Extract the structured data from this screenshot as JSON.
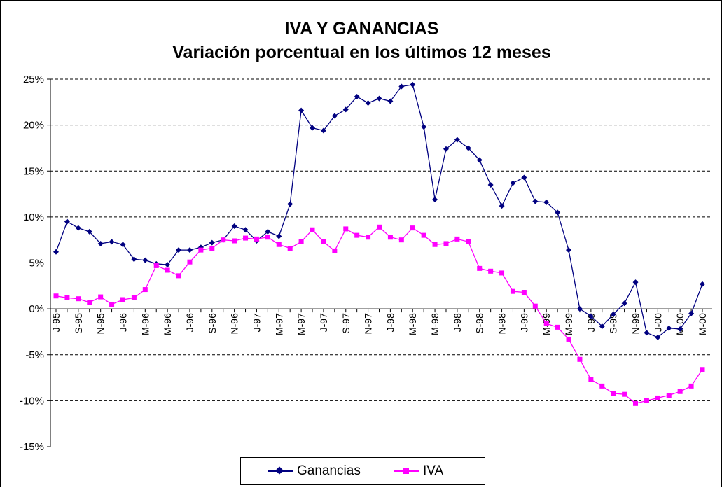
{
  "chart_data": {
    "type": "line",
    "title": "IVA Y GANANCIAS",
    "subtitle": "Variación porcentual en los últimos 12 meses",
    "ylim": [
      -15,
      25
    ],
    "yticks": [
      "-15%",
      "-10%",
      "-5%",
      "0%",
      "5%",
      "10%",
      "15%",
      "20%",
      "25%"
    ],
    "ytick_values": [
      -15,
      -10,
      -5,
      0,
      5,
      10,
      15,
      20,
      25
    ],
    "grid": "horizontal dashed",
    "legend_position": "bottom",
    "x_tick_labels": [
      "J-95",
      "S-95",
      "N-95",
      "J-96",
      "M-96",
      "M-96",
      "J-96",
      "S-96",
      "N-96",
      "J-97",
      "M-97",
      "M-97",
      "J-97",
      "S-97",
      "N-97",
      "J-98",
      "M-98",
      "M-98",
      "J-98",
      "S-98",
      "N-98",
      "J-99",
      "M-99",
      "M-99",
      "J-99",
      "S-99",
      "N-99",
      "J-00",
      "M-00",
      "M-00"
    ],
    "series": [
      {
        "name": "Ganancias",
        "color": "#000080",
        "marker": "diamond",
        "values": [
          6.2,
          9.5,
          8.8,
          8.4,
          7.1,
          7.3,
          7.0,
          5.4,
          5.3,
          4.9,
          4.8,
          6.4,
          6.4,
          6.7,
          7.2,
          7.5,
          9.0,
          8.6,
          7.4,
          8.4,
          7.9,
          11.4,
          21.6,
          19.7,
          19.4,
          21.0,
          21.7,
          23.1,
          22.4,
          22.9,
          22.6,
          24.2,
          24.4,
          19.8,
          11.9,
          17.4,
          18.4,
          17.5,
          16.2,
          13.5,
          11.2,
          13.7,
          14.3,
          11.7,
          11.6,
          10.5,
          6.4,
          0.0,
          -0.8,
          -1.9,
          -0.6,
          0.6,
          2.9,
          -2.6,
          -3.1,
          -2.1,
          -2.2,
          -0.5,
          2.7
        ]
      },
      {
        "name": "IVA",
        "color": "#ff00ff",
        "marker": "square",
        "values": [
          1.4,
          1.2,
          1.1,
          0.7,
          1.3,
          0.5,
          1.0,
          1.2,
          2.1,
          4.7,
          4.2,
          3.6,
          5.1,
          6.4,
          6.6,
          7.5,
          7.4,
          7.7,
          7.6,
          7.8,
          7.0,
          6.6,
          7.3,
          8.6,
          7.3,
          6.3,
          8.7,
          8.0,
          7.8,
          8.9,
          7.8,
          7.5,
          8.8,
          8.0,
          7.0,
          7.1,
          7.6,
          7.3,
          4.4,
          4.1,
          3.9,
          1.9,
          1.8,
          0.3,
          -1.6,
          -2.0,
          -3.3,
          -5.5,
          -7.7,
          -8.4,
          -9.2,
          -9.3,
          -10.3,
          -10.0,
          -9.7,
          -9.4,
          -9.0,
          -8.4,
          -6.6
        ]
      }
    ]
  }
}
